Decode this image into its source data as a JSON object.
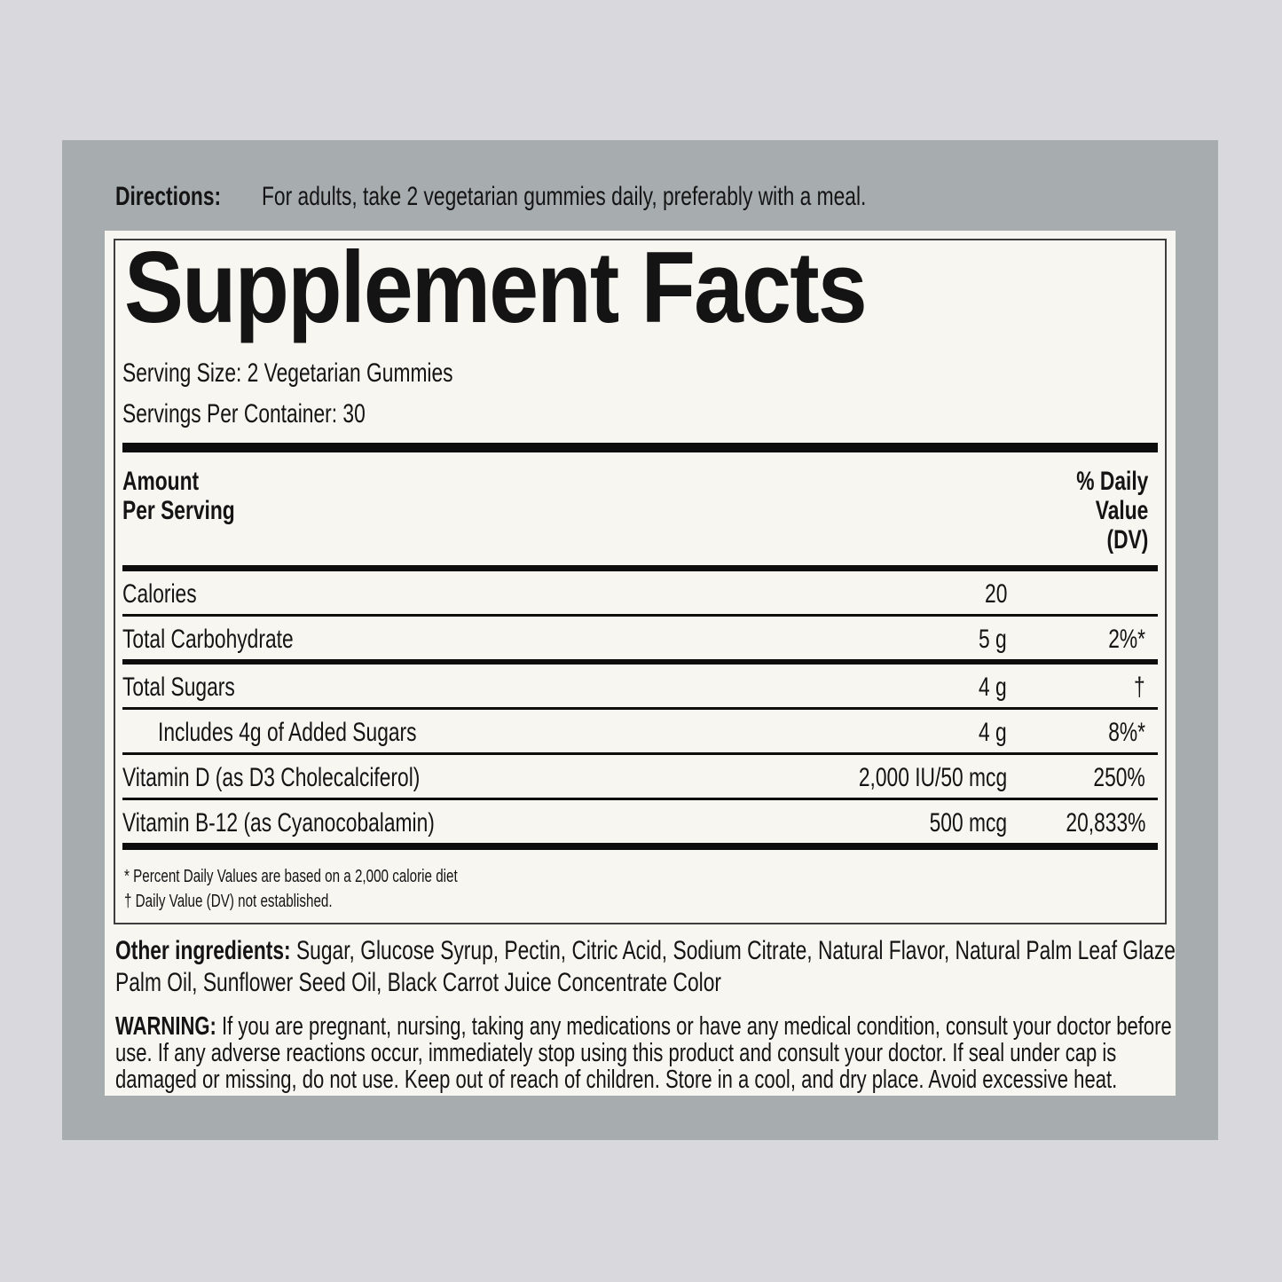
{
  "colors": {
    "outer_background": "#d9d8dc",
    "panel_background": "#a7acae",
    "sheet_background": "#f7f6f1",
    "box_border": "#3e3e3e",
    "rule_black": "#0d0d0d",
    "text": "#141414"
  },
  "directions": {
    "label": "Directions:",
    "text": "For adults, take 2 vegetarian gummies daily, preferably with a meal."
  },
  "facts": {
    "title": "Supplement Facts",
    "serving_size": "Serving Size: 2 Vegetarian Gummies",
    "servings_per_container": "Servings Per Container: 30",
    "header": {
      "amount": "Amount\nPer Serving",
      "daily_value": "% Daily\nValue\n(DV)"
    },
    "rows": [
      {
        "name": "Calories",
        "amount": "20",
        "dv": ""
      },
      {
        "name": "Total Carbohydrate",
        "amount": "5 g",
        "dv": "2%*"
      },
      {
        "name": "Total Sugars",
        "amount": "4 g",
        "dv": "†"
      },
      {
        "name": "Includes 4g of Added Sugars",
        "amount": "4 g",
        "dv": "8%*"
      },
      {
        "name": "Vitamin D (as D3 Cholecalciferol)",
        "amount": "2,000 IU/50 mcg",
        "dv": "250%"
      },
      {
        "name": "Vitamin B-12 (as Cyanocobalamin)",
        "amount": "500 mcg",
        "dv": "20,833%"
      }
    ],
    "footnotes": [
      "* Percent Daily Values are based on a 2,000 calorie diet",
      "† Daily Value (DV) not established."
    ]
  },
  "other_ingredients": {
    "label": "Other ingredients:",
    "text": "Sugar, Glucose Syrup, Pectin, Citric Acid, Sodium Citrate, Natural Flavor, Natural Palm Leaf Glaze,\nPalm Oil, Sunflower Seed Oil, Black Carrot Juice Concentrate Color"
  },
  "warning": {
    "label": "WARNING:",
    "text": "If you are pregnant, nursing, taking any medications or have any medical condition, consult your doctor before\nuse. If any adverse reactions occur, immediately stop using this product and consult your doctor. If seal under cap is\ndamaged or missing, do not use. Keep out of reach of children. Store in a cool, and dry place. Avoid excessive heat."
  }
}
